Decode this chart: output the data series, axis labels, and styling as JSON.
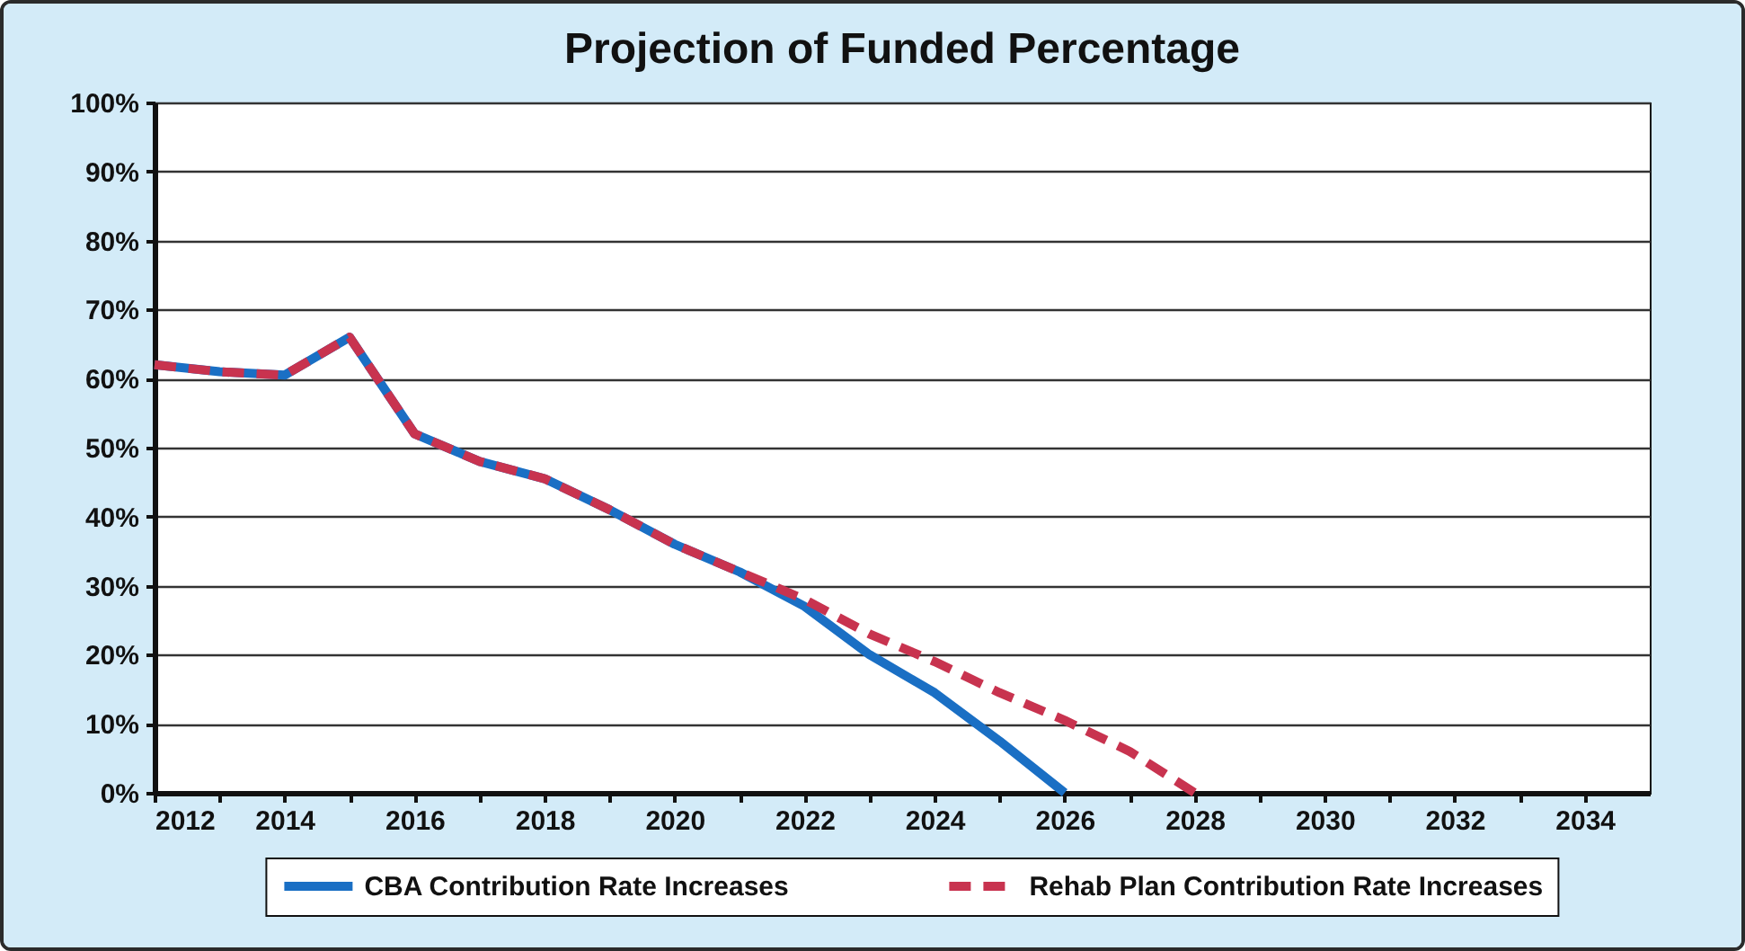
{
  "chart_data": {
    "type": "line",
    "title": "Projection of Funded Percentage",
    "series": [
      {
        "name": "CBA Contribution Rate Increases",
        "color": "#1a6fc4",
        "line_style": "solid",
        "x": [
          2012,
          2013,
          2014,
          2015,
          2016,
          2017,
          2018,
          2019,
          2020,
          2021,
          2022,
          2023,
          2024,
          2025,
          2026
        ],
        "values": [
          62,
          61,
          60.5,
          66,
          52,
          48,
          45.5,
          41,
          36,
          32,
          27,
          20,
          14.5,
          7.5,
          0
        ]
      },
      {
        "name": "Rehab Plan Contribution Rate Increases",
        "color": "#c8334f",
        "line_style": "dashed",
        "x": [
          2012,
          2013,
          2014,
          2015,
          2016,
          2017,
          2018,
          2019,
          2020,
          2021,
          2022,
          2023,
          2024,
          2025,
          2026,
          2027,
          2028
        ],
        "values": [
          62,
          61,
          60.5,
          66,
          52,
          48,
          45.5,
          41,
          36,
          32,
          28,
          23,
          19,
          14.5,
          10.5,
          6,
          0
        ]
      }
    ],
    "xlim": [
      2012,
      2035
    ],
    "xticks": [
      2012,
      {
        "value": 2013,
        "label": null
      },
      2014,
      {
        "value": 2015,
        "label": null
      },
      2016,
      {
        "value": 2017,
        "label": null
      },
      2018,
      {
        "value": 2019,
        "label": null
      },
      2020,
      {
        "value": 2021,
        "label": null
      },
      2022,
      {
        "value": 2023,
        "label": null
      },
      2024,
      {
        "value": 2025,
        "label": null
      },
      2026,
      {
        "value": 2027,
        "label": null
      },
      2028,
      {
        "value": 2029,
        "label": null
      },
      2030,
      {
        "value": 2031,
        "label": null
      },
      2032,
      {
        "value": 2033,
        "label": null
      },
      2034
    ],
    "ylim": [
      0,
      100
    ],
    "yticks": [
      {
        "value": 0,
        "label": "0%"
      },
      {
        "value": 10,
        "label": "10%"
      },
      {
        "value": 20,
        "label": "20%"
      },
      {
        "value": 30,
        "label": "30%"
      },
      {
        "value": 40,
        "label": "40%"
      },
      {
        "value": 50,
        "label": "50%"
      },
      {
        "value": 60,
        "label": "60%"
      },
      {
        "value": 70,
        "label": "70%"
      },
      {
        "value": 80,
        "label": "80%"
      },
      {
        "value": 90,
        "label": "90%"
      },
      {
        "value": 100,
        "label": "100%"
      }
    ],
    "grid": "y",
    "legend": "bottom"
  }
}
